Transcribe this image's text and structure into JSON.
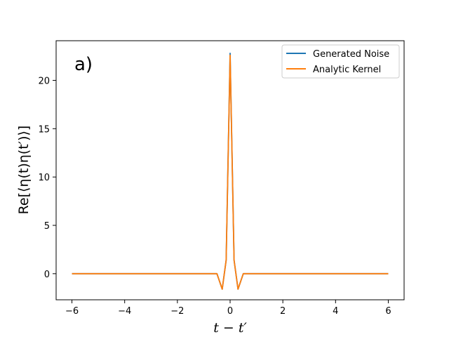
{
  "chart_data": {
    "type": "line",
    "panel_label": "a)",
    "title": "",
    "xlabel": "t − t′",
    "ylabel": "Re[⟨η(t)η(t′)⟩]",
    "xlim": [
      -6.6,
      6.6
    ],
    "ylim": [
      -2.7,
      24.1
    ],
    "xticks": [
      -6,
      -4,
      -2,
      0,
      2,
      4,
      6
    ],
    "xtick_labels": [
      "−6",
      "−4",
      "−2",
      "0",
      "2",
      "4",
      "6"
    ],
    "yticks": [
      0,
      5,
      10,
      15,
      20
    ],
    "ytick_labels": [
      "0",
      "5",
      "10",
      "15",
      "20"
    ],
    "grid": false,
    "legend_position": "top-right",
    "series": [
      {
        "name": "Generated Noise",
        "color": "#1f77b4",
        "x": [
          -6.0,
          -5.5,
          -5.0,
          -4.5,
          -4.0,
          -3.5,
          -3.0,
          -2.5,
          -2.0,
          -1.5,
          -1.0,
          -0.5,
          -0.3,
          -0.15,
          0.0,
          0.15,
          0.3,
          0.5,
          1.0,
          1.5,
          2.0,
          2.5,
          3.0,
          3.5,
          4.0,
          4.5,
          5.0,
          5.5,
          6.0
        ],
        "y": [
          0.0,
          0.0,
          0.0,
          0.0,
          0.0,
          0.0,
          0.0,
          0.0,
          0.0,
          0.0,
          0.0,
          0.0,
          -1.6,
          1.4,
          22.8,
          1.4,
          -1.6,
          0.0,
          0.0,
          0.0,
          0.0,
          0.0,
          0.0,
          0.0,
          0.0,
          0.0,
          0.0,
          0.0,
          0.0
        ]
      },
      {
        "name": "Analytic Kernel",
        "color": "#ff7f0e",
        "x": [
          -6.0,
          -5.5,
          -5.0,
          -4.5,
          -4.0,
          -3.5,
          -3.0,
          -2.5,
          -2.0,
          -1.5,
          -1.0,
          -0.5,
          -0.3,
          -0.15,
          0.0,
          0.15,
          0.3,
          0.5,
          1.0,
          1.5,
          2.0,
          2.5,
          3.0,
          3.5,
          4.0,
          4.5,
          5.0,
          5.5,
          6.0
        ],
        "y": [
          0.0,
          0.0,
          0.0,
          0.0,
          0.0,
          0.0,
          0.0,
          0.0,
          0.0,
          0.0,
          0.0,
          0.0,
          -1.6,
          1.4,
          22.6,
          1.4,
          -1.6,
          0.0,
          0.0,
          0.0,
          0.0,
          0.0,
          0.0,
          0.0,
          0.0,
          0.0,
          0.0,
          0.0,
          0.0
        ]
      }
    ]
  }
}
